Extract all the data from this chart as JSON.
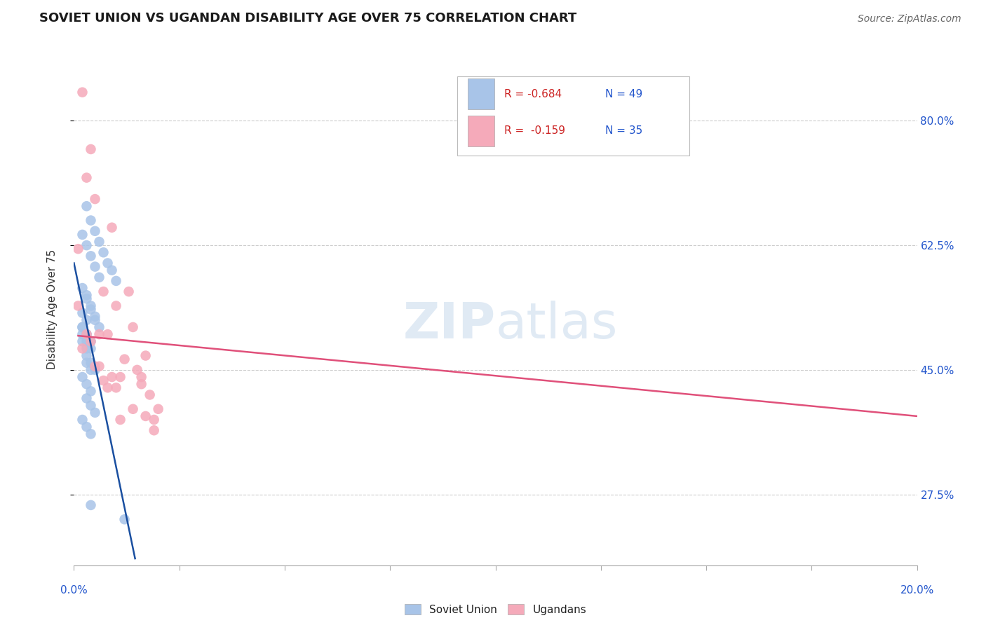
{
  "title": "SOVIET UNION VS UGANDAN DISABILITY AGE OVER 75 CORRELATION CHART",
  "source": "Source: ZipAtlas.com",
  "ylabel": "Disability Age Over 75",
  "ytick_labels": [
    "80.0%",
    "62.5%",
    "45.0%",
    "27.5%"
  ],
  "ytick_values": [
    0.8,
    0.625,
    0.45,
    0.275
  ],
  "xmin": 0.0,
  "xmax": 0.2,
  "ymin": 0.175,
  "ymax": 0.895,
  "legend_R1": "R = -0.684",
  "legend_N1": "N = 49",
  "legend_R2": "R =  -0.159",
  "legend_N2": "N = 35",
  "blue_color": "#a8c4e8",
  "pink_color": "#f5aaba",
  "blue_line_color": "#1a4fa0",
  "pink_line_color": "#e0507a",
  "watermark_zip": "ZIP",
  "watermark_atlas": "atlas",
  "soviet_scatter_x": [
    0.003,
    0.004,
    0.005,
    0.006,
    0.007,
    0.008,
    0.009,
    0.01,
    0.003,
    0.004,
    0.005,
    0.006,
    0.002,
    0.003,
    0.004,
    0.005,
    0.006,
    0.002,
    0.003,
    0.004,
    0.005,
    0.002,
    0.003,
    0.004,
    0.002,
    0.003,
    0.004,
    0.003,
    0.004,
    0.005,
    0.003,
    0.004,
    0.002,
    0.003,
    0.004,
    0.003,
    0.004,
    0.005,
    0.002,
    0.003,
    0.004,
    0.002,
    0.003,
    0.002,
    0.003,
    0.002,
    0.003,
    0.012,
    0.004
  ],
  "soviet_scatter_y": [
    0.68,
    0.66,
    0.645,
    0.63,
    0.615,
    0.6,
    0.59,
    0.575,
    0.555,
    0.54,
    0.525,
    0.51,
    0.64,
    0.625,
    0.61,
    0.595,
    0.58,
    0.565,
    0.55,
    0.535,
    0.52,
    0.51,
    0.5,
    0.49,
    0.5,
    0.49,
    0.48,
    0.47,
    0.46,
    0.45,
    0.46,
    0.45,
    0.44,
    0.43,
    0.42,
    0.41,
    0.4,
    0.39,
    0.38,
    0.37,
    0.36,
    0.53,
    0.52,
    0.51,
    0.5,
    0.49,
    0.48,
    0.24,
    0.26
  ],
  "ugandan_scatter_x": [
    0.002,
    0.005,
    0.009,
    0.013,
    0.016,
    0.019,
    0.003,
    0.007,
    0.01,
    0.014,
    0.017,
    0.004,
    0.008,
    0.011,
    0.015,
    0.018,
    0.001,
    0.012,
    0.02,
    0.003,
    0.006,
    0.009,
    0.004,
    0.007,
    0.01,
    0.014,
    0.005,
    0.008,
    0.011,
    0.002,
    0.016,
    0.019,
    0.006,
    0.001,
    0.017
  ],
  "ugandan_scatter_y": [
    0.84,
    0.69,
    0.65,
    0.56,
    0.43,
    0.38,
    0.72,
    0.56,
    0.54,
    0.51,
    0.47,
    0.76,
    0.5,
    0.44,
    0.45,
    0.415,
    0.54,
    0.465,
    0.395,
    0.5,
    0.455,
    0.44,
    0.49,
    0.435,
    0.425,
    0.395,
    0.455,
    0.425,
    0.38,
    0.48,
    0.44,
    0.365,
    0.5,
    0.62,
    0.385
  ],
  "blue_trendline_x": [
    0.0,
    0.0145
  ],
  "blue_trendline_y": [
    0.6,
    0.185
  ],
  "pink_trendline_x": [
    0.001,
    0.2
  ],
  "pink_trendline_y": [
    0.498,
    0.385
  ]
}
